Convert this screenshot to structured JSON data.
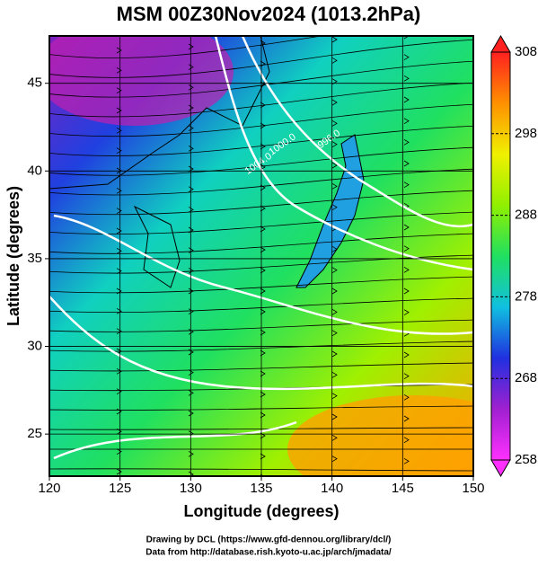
{
  "chart_data": {
    "type": "map",
    "title": "MSM 00Z30Nov2024 (1013.2hPa)",
    "x_label": "Longitude (degrees)",
    "y_label": "Latitude  (degrees)",
    "xlim": [
      120,
      150
    ],
    "ylim": [
      22.6,
      47.7
    ],
    "xticks": [
      120,
      125,
      130,
      135,
      140,
      145,
      150
    ],
    "yticks": [
      25,
      30,
      35,
      40,
      45
    ],
    "grid": true,
    "colorbar": {
      "lim": [
        258,
        308
      ],
      "ticks": [
        258,
        268,
        278,
        288,
        298,
        308
      ],
      "colors": [
        "#ff30ff",
        "#a020d0",
        "#2030e0",
        "#10c0e0",
        "#20e060",
        "#90f000",
        "#f0f000",
        "#ff9000",
        "#ff2020"
      ]
    },
    "contour_labels": [
      {
        "text": "1000.0",
        "lon": 136.5,
        "lat": 41.5
      },
      {
        "text": "1004.0",
        "lon": 134.8,
        "lat": 40.4
      },
      {
        "text": "996.0",
        "lon": 139.8,
        "lat": 41.8
      }
    ],
    "footer": [
      "Drawing by DCL (https://www.gfd-dennou.org/library/dcl/)",
      "Data from http://database.rish.kyoto-u.ac.jp/arch/jmadata/"
    ]
  }
}
